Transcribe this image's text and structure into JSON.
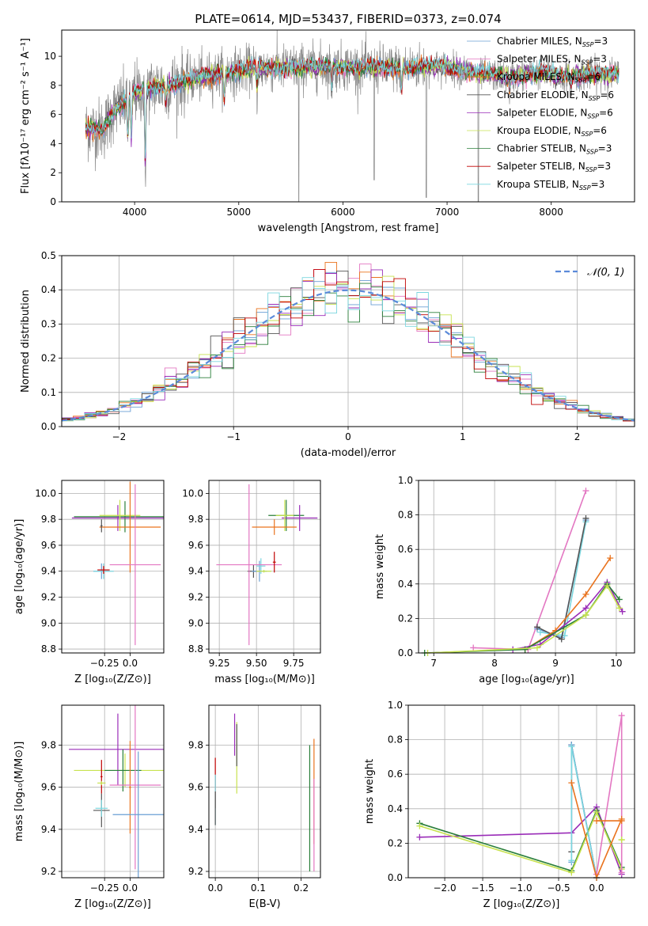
{
  "figure": {
    "title": "PLATE=0614, MJD=53437, FIBERID=0373, z=0.074",
    "colors": [
      "#6a9fd4",
      "#e377c2",
      "#e9731e",
      "#555555",
      "#9a2db8",
      "#c7e24f",
      "#2a7f3a",
      "#c00000",
      "#7bd6df"
    ],
    "legend_labels": [
      "Chabrier MILES, N",
      "Salpeter MILES, N",
      "Kroupa MILES, N",
      "Chabrier ELODIE, N",
      "Salpeter ELODIE, N",
      "Kroupa ELODIE, N",
      "Chabrier STELIB, N",
      "Salpeter STELIB, N",
      "Kroupa STELIB, N"
    ],
    "legend_sub": "SSP",
    "legend_nssp": [
      "=3",
      "=3",
      "=6",
      "=6",
      "=6",
      "=6",
      "=3",
      "=3",
      "=3"
    ]
  },
  "chart_data": [
    {
      "id": "spectrum",
      "type": "line",
      "xlabel": "wavelength [Angstrom, rest frame]",
      "ylabel": "Flux [fλ10⁻¹⁷ erg cm⁻² s⁻¹ A⁻¹]",
      "xlim": [
        3300,
        8800
      ],
      "ylim": [
        0,
        11.8
      ],
      "xticks": [
        4000,
        5000,
        6000,
        7000,
        8000
      ],
      "yticks": [
        0,
        2,
        4,
        6,
        8,
        10
      ],
      "observed_color": "#888888",
      "continuum": [
        [
          3530,
          5.0
        ],
        [
          3700,
          5.0
        ],
        [
          3800,
          6.3
        ],
        [
          3900,
          6.8
        ],
        [
          4000,
          7.5
        ],
        [
          4200,
          7.9
        ],
        [
          4500,
          8.3
        ],
        [
          4800,
          8.8
        ],
        [
          5000,
          9.0
        ],
        [
          5200,
          9.2
        ],
        [
          5500,
          9.2
        ],
        [
          5800,
          9.3
        ],
        [
          6000,
          9.3
        ],
        [
          6200,
          9.2
        ],
        [
          6500,
          9.2
        ],
        [
          6800,
          9.3
        ],
        [
          7000,
          9.3
        ],
        [
          7300,
          8.8
        ],
        [
          7600,
          8.6
        ],
        [
          7700,
          8.7
        ],
        [
          7900,
          8.9
        ],
        [
          8100,
          8.6
        ],
        [
          8400,
          8.8
        ],
        [
          8650,
          8.7
        ]
      ],
      "absorption": [
        [
          3934,
          4.2
        ],
        [
          3968,
          3.9
        ],
        [
          4102,
          2.0
        ],
        [
          4300,
          6.5
        ],
        [
          4861,
          6.8
        ],
        [
          5175,
          7.6
        ],
        [
          5893,
          7.8
        ],
        [
          6563,
          7.5
        ],
        [
          7600,
          7.6
        ],
        [
          8190,
          8.0
        ]
      ],
      "sky_lines": [
        [
          5577,
          0.0
        ],
        [
          6300,
          1.5
        ],
        [
          6800,
          0.3
        ],
        [
          7300,
          0.0
        ]
      ],
      "legend_position": "right"
    },
    {
      "id": "residuals",
      "type": "histogram",
      "xlabel": "(data-model)/error",
      "ylabel": "Normed distribution",
      "xlim": [
        -2.5,
        2.5
      ],
      "ylim": [
        0,
        0.5
      ],
      "xticks": [
        -2,
        -1,
        0,
        1,
        2
      ],
      "yticks": [
        0.0,
        0.1,
        0.2,
        0.3,
        0.4,
        0.5
      ],
      "bin_width": 0.1,
      "normal_curve": {
        "label": "𝒩(0, 1)",
        "color": "#5b8ad9",
        "mu": 0,
        "sigma": 1
      },
      "legend_position": "top-right"
    },
    {
      "id": "age_vs_Z",
      "type": "errorbar",
      "xlabel": "Z [log₁₀(Z/Z⊙)]",
      "ylabel": "age  [log₁₀(age/yr)]",
      "xlim": [
        -0.67,
        0.33
      ],
      "ylim": [
        8.77,
        10.1
      ],
      "xticks": [
        -0.25,
        0.0
      ],
      "xticklabels": [
        "−0.25",
        "0.0"
      ],
      "yticks": [
        8.8,
        9.0,
        9.2,
        9.4,
        9.6,
        9.8,
        10.0
      ],
      "points": [
        {
          "x": -0.05,
          "y": 9.82,
          "xe": 0.5,
          "ye": 0.12,
          "c": 6
        },
        {
          "x": -0.12,
          "y": 9.81,
          "xe": 0.45,
          "ye": 0.1,
          "c": 4
        },
        {
          "x": -0.1,
          "y": 9.83,
          "xe": 0.2,
          "ye": 0.12,
          "c": 5
        },
        {
          "x": 0.0,
          "y": 9.74,
          "xe": 0.3,
          "ye": 0.35,
          "c": 2
        },
        {
          "x": -0.28,
          "y": 9.75,
          "xe": 0.01,
          "ye": 0.05,
          "c": 3
        },
        {
          "x": -0.28,
          "y": 9.4,
          "xe": 0.08,
          "ye": 0.06,
          "c": 0
        },
        {
          "x": -0.26,
          "y": 9.4,
          "xe": 0.1,
          "ye": 0.06,
          "c": 8
        },
        {
          "x": 0.05,
          "y": 9.45,
          "xe": 0.25,
          "ye": 0.62,
          "c": 1
        },
        {
          "x": -0.26,
          "y": 9.41,
          "xe": 0.06,
          "ye": 0.03,
          "c": 7
        }
      ]
    },
    {
      "id": "age_vs_mass",
      "type": "errorbar",
      "xlabel": "mass [log₁₀(M/M⊙)]",
      "ylabel": "",
      "xlim": [
        9.18,
        9.93
      ],
      "ylim": [
        8.77,
        10.1
      ],
      "xticks": [
        9.25,
        9.5,
        9.75
      ],
      "xticklabels": [
        "9.25",
        "9.50",
        "9.75"
      ],
      "yticks": [
        8.8,
        9.0,
        9.2,
        9.4,
        9.6,
        9.8,
        10.0
      ],
      "points": [
        {
          "x": 9.7,
          "y": 9.83,
          "xe": 0.12,
          "ye": 0.12,
          "c": 6
        },
        {
          "x": 9.79,
          "y": 9.81,
          "xe": 0.12,
          "ye": 0.1,
          "c": 4
        },
        {
          "x": 9.69,
          "y": 9.83,
          "xe": 0.06,
          "ye": 0.12,
          "c": 5
        },
        {
          "x": 9.62,
          "y": 9.74,
          "xe": 0.15,
          "ye": 0.06,
          "c": 2
        },
        {
          "x": 9.48,
          "y": 9.4,
          "xe": 0.04,
          "ye": 0.05,
          "c": 3
        },
        {
          "x": 9.52,
          "y": 9.4,
          "xe": 0.05,
          "ye": 0.08,
          "c": 0
        },
        {
          "x": 9.53,
          "y": 9.44,
          "xe": 0.03,
          "ye": 0.06,
          "c": 8
        },
        {
          "x": 9.45,
          "y": 9.45,
          "xe": 0.22,
          "ye": 0.62,
          "c": 1
        },
        {
          "x": 9.62,
          "y": 9.47,
          "xe": 0.01,
          "ye": 0.08,
          "c": 7
        },
        {
          "x": 9.55,
          "y": 9.4,
          "xe": 0.05,
          "ye": 0.01,
          "c": 5
        }
      ]
    },
    {
      "id": "weight_vs_age",
      "type": "line",
      "xlabel": "age  [log₁₀(age/yr)]",
      "ylabel": "mass weight",
      "xlim": [
        6.75,
        10.3
      ],
      "ylim": [
        0,
        1.0
      ],
      "xticks": [
        7,
        8,
        9,
        10
      ],
      "yticks": [
        0.0,
        0.2,
        0.4,
        0.6,
        0.8,
        1.0
      ],
      "series": [
        {
          "c": 1,
          "x": [
            7.65,
            8.55,
            9.5
          ],
          "y": [
            0.03,
            0.02,
            0.94
          ]
        },
        {
          "c": 0,
          "x": [
            8.7,
            9.1,
            9.5
          ],
          "y": [
            0.14,
            0.09,
            0.77
          ]
        },
        {
          "c": 8,
          "x": [
            8.75,
            9.15,
            9.5
          ],
          "y": [
            0.12,
            0.1,
            0.76
          ]
        },
        {
          "c": 3,
          "x": [
            8.7,
            9.1,
            9.5
          ],
          "y": [
            0.15,
            0.08,
            0.78
          ]
        },
        {
          "c": 2,
          "x": [
            8.5,
            9.0,
            9.5,
            9.9
          ],
          "y": [
            0.02,
            0.13,
            0.34,
            0.55
          ]
        },
        {
          "c": 4,
          "x": [
            8.3,
            8.75,
            9.5,
            9.85,
            10.1
          ],
          "y": [
            0.02,
            0.05,
            0.26,
            0.41,
            0.24
          ]
        },
        {
          "c": 6,
          "x": [
            6.85,
            8.5,
            9.5,
            9.85,
            10.05
          ],
          "y": [
            0.0,
            0.02,
            0.22,
            0.4,
            0.31
          ]
        },
        {
          "c": 5,
          "x": [
            6.9,
            8.7,
            9.5,
            9.85,
            10.05
          ],
          "y": [
            0.0,
            0.03,
            0.22,
            0.39,
            0.26
          ]
        }
      ]
    },
    {
      "id": "mass_vs_Z",
      "type": "errorbar",
      "xlabel": "Z [log₁₀(Z/Z⊙)]",
      "ylabel": "mass [log₁₀(M/M⊙)]",
      "xlim": [
        -0.67,
        0.33
      ],
      "ylim": [
        9.17,
        9.99
      ],
      "xticks": [
        -0.25,
        0.0
      ],
      "xticklabels": [
        "−0.25",
        "0.0"
      ],
      "yticks": [
        9.2,
        9.4,
        9.6,
        9.8
      ],
      "points": [
        {
          "x": -0.12,
          "y": 9.78,
          "xe": 0.48,
          "ye": 0.17,
          "c": 4
        },
        {
          "x": -0.05,
          "y": 9.68,
          "xe": 0.5,
          "ye": 0.08,
          "c": 5
        },
        {
          "x": -0.07,
          "y": 9.68,
          "xe": 0.18,
          "ye": 0.1,
          "c": 6
        },
        {
          "x": 0.0,
          "y": 9.6,
          "xe": 0.01,
          "ye": 0.22,
          "c": 2
        },
        {
          "x": -0.28,
          "y": 9.65,
          "xe": 0.01,
          "ye": 0.08,
          "c": 7
        },
        {
          "x": -0.28,
          "y": 9.49,
          "xe": 0.08,
          "ye": 0.08,
          "c": 3
        },
        {
          "x": 0.05,
          "y": 9.61,
          "xe": 0.25,
          "ye": 0.4,
          "c": 1
        },
        {
          "x": 0.08,
          "y": 9.47,
          "xe": 0.25,
          "ye": 0.3,
          "c": 0
        },
        {
          "x": -0.28,
          "y": 9.5,
          "xe": 0.06,
          "ye": 0.04,
          "c": 8
        },
        {
          "x": -0.28,
          "y": 9.62,
          "xe": 0.04,
          "ye": 0.01,
          "c": 5
        }
      ]
    },
    {
      "id": "mass_vs_ebv",
      "type": "errorbar",
      "xlabel": "E(B-V)",
      "ylabel": "",
      "xlim": [
        -0.015,
        0.245
      ],
      "ylim": [
        9.17,
        9.99
      ],
      "xticks": [
        0.0,
        0.1,
        0.2
      ],
      "xticklabels": [
        "0.0",
        "0.1",
        "0.2"
      ],
      "yticks": [
        9.2,
        9.4,
        9.6,
        9.8
      ],
      "points": [
        {
          "x": 0.0,
          "y": 9.62,
          "xe": 0,
          "ye": 0.12,
          "c": 7
        },
        {
          "x": 0.0,
          "y": 9.54,
          "xe": 0,
          "ye": 0.12,
          "c": 8
        },
        {
          "x": 0.0,
          "y": 9.5,
          "xe": 0,
          "ye": 0.08,
          "c": 3
        },
        {
          "x": 0.045,
          "y": 9.85,
          "xe": 0,
          "ye": 0.1,
          "c": 4
        },
        {
          "x": 0.05,
          "y": 9.74,
          "xe": 0,
          "ye": 0.17,
          "c": 5
        },
        {
          "x": 0.05,
          "y": 9.8,
          "xe": 0,
          "ye": 0.1,
          "c": 3
        },
        {
          "x": 0.23,
          "y": 9.58,
          "xe": 0,
          "ye": 0.25,
          "c": 2
        },
        {
          "x": 0.23,
          "y": 9.42,
          "xe": 0,
          "ye": 0.22,
          "c": 1
        },
        {
          "x": 0.22,
          "y": 9.5,
          "xe": 0,
          "ye": 0.3,
          "c": 6
        }
      ]
    },
    {
      "id": "weight_vs_Z",
      "type": "line",
      "xlabel": "Z [log₁₀(Z/Z⊙)]",
      "ylabel": "mass weight",
      "xlim": [
        -2.48,
        0.5
      ],
      "ylim": [
        0,
        1.0
      ],
      "xticks": [
        -2.0,
        -1.5,
        -1.0,
        -0.5,
        0.0
      ],
      "xticklabels": [
        "−2.0",
        "−1.5",
        "−1.0",
        "−0.5",
        "0.0"
      ],
      "yticks": [
        0.0,
        0.2,
        0.4,
        0.6,
        0.8,
        1.0
      ],
      "series": [
        {
          "c": 4,
          "x": [
            -2.33,
            -0.33,
            0.0,
            0.33
          ],
          "y": [
            0.235,
            0.26,
            0.41,
            0.02
          ]
        },
        {
          "c": 6,
          "x": [
            -2.33,
            -0.33,
            0.0,
            0.33
          ],
          "y": [
            0.315,
            0.04,
            0.39,
            0.06
          ]
        },
        {
          "c": 5,
          "x": [
            -2.33,
            -0.33,
            0.0,
            0.33
          ],
          "y": [
            0.3,
            0.03,
            0.38,
            0.05
          ]
        },
        {
          "c": 3,
          "x": [
            -0.33,
            -0.33,
            0.0
          ],
          "y": [
            0.15,
            0.77,
            0.0
          ]
        },
        {
          "c": 0,
          "x": [
            -0.33,
            -0.33,
            0.0
          ],
          "y": [
            0.09,
            0.77,
            0.0
          ]
        },
        {
          "c": 8,
          "x": [
            -0.33,
            -0.33,
            0.0
          ],
          "y": [
            0.1,
            0.76,
            0.0
          ]
        },
        {
          "c": 1,
          "x": [
            0.0,
            0.33,
            0.33
          ],
          "y": [
            0.02,
            0.94,
            0.03
          ]
        },
        {
          "c": 2,
          "x": [
            -0.33,
            0.0,
            0.33
          ],
          "y": [
            0.55,
            0.0,
            0.34
          ]
        },
        {
          "c": 2,
          "x": [
            0.0,
            0.33
          ],
          "y": [
            0.33,
            0.33
          ]
        },
        {
          "c": 5,
          "x": [
            0.33,
            0.33
          ],
          "y": [
            0.22,
            0.22
          ]
        }
      ]
    }
  ]
}
